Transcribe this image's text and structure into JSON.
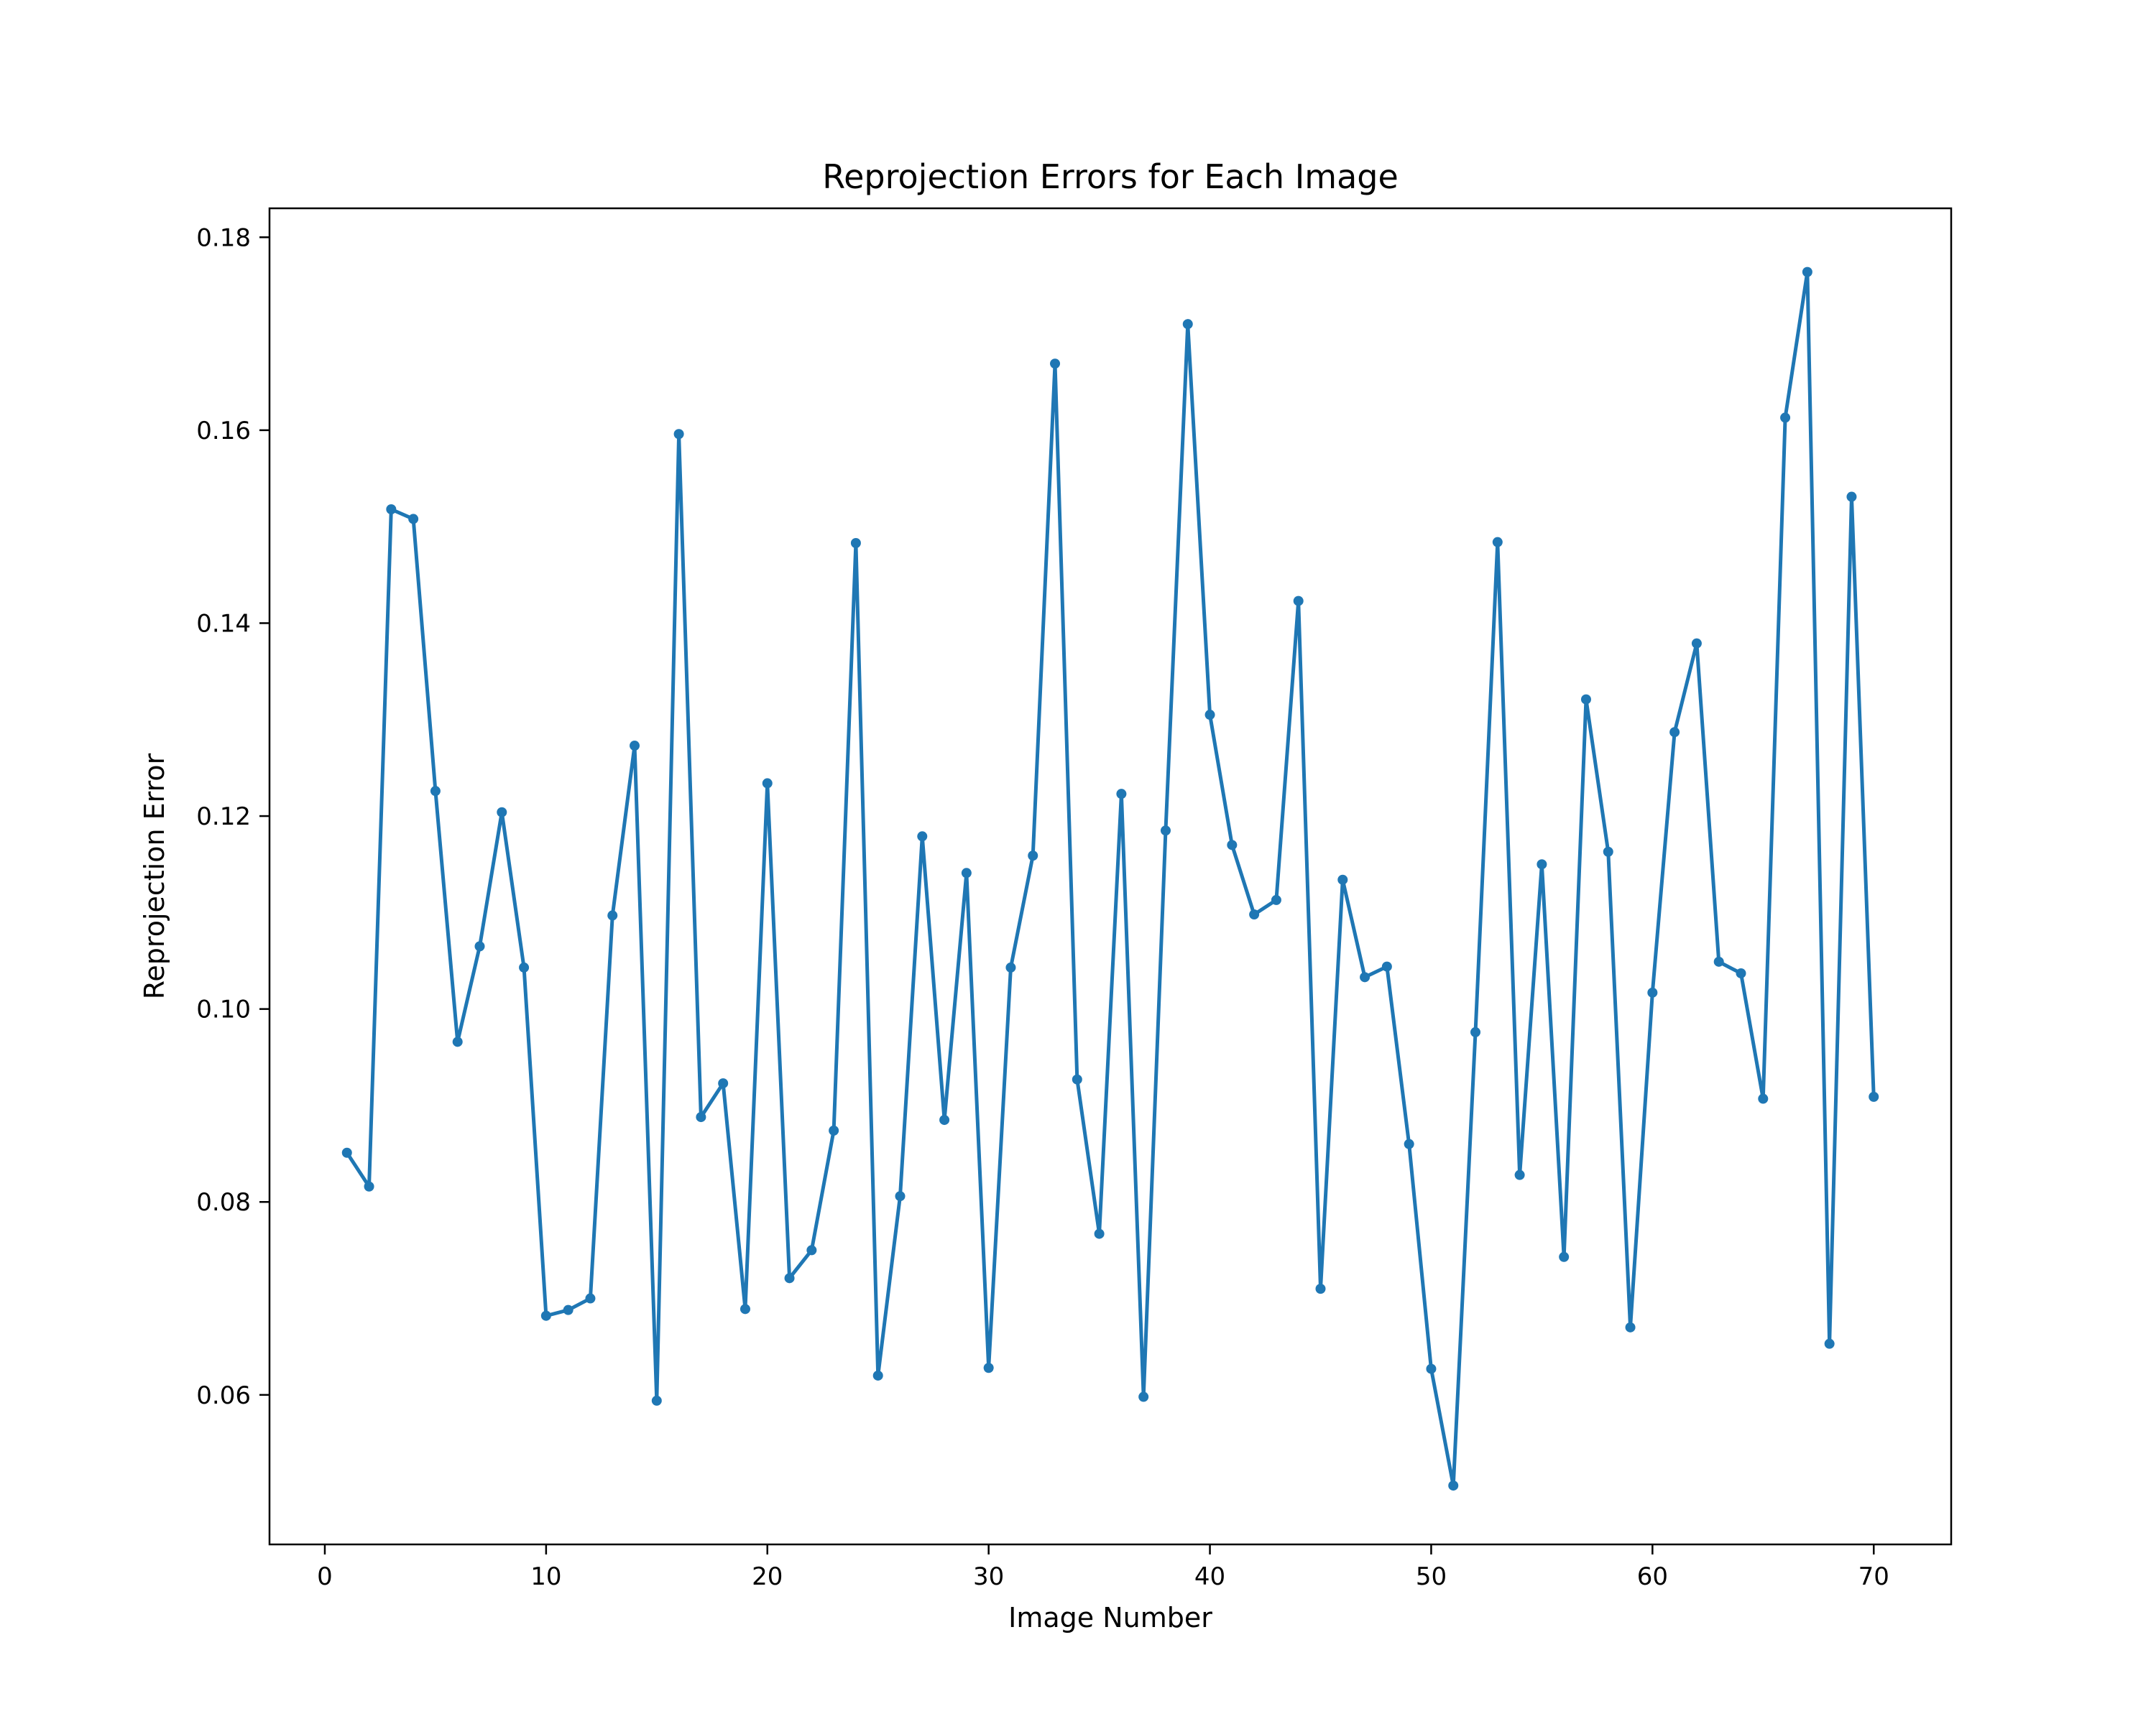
{
  "chart_data": {
    "type": "line",
    "title": "Reprojection Errors for Each Image",
    "xlabel": "Image Number",
    "ylabel": "Reprojection Error",
    "xlim": [
      -2.5,
      73.5
    ],
    "ylim": [
      0.0445,
      0.183
    ],
    "xticks": [
      0,
      10,
      20,
      30,
      40,
      50,
      60,
      70
    ],
    "xtick_labels": [
      "0",
      "10",
      "20",
      "30",
      "40",
      "50",
      "60",
      "70"
    ],
    "yticks": [
      0.06,
      0.08,
      0.1,
      0.12,
      0.14,
      0.16,
      0.18
    ],
    "ytick_labels": [
      "0.06",
      "0.08",
      "0.10",
      "0.12",
      "0.14",
      "0.16",
      "0.18"
    ],
    "grid": false,
    "legend": "none",
    "marker": "circle",
    "series": [
      {
        "color": "#1f77b4",
        "x": [
          1,
          2,
          3,
          4,
          5,
          6,
          7,
          8,
          9,
          10,
          11,
          12,
          13,
          14,
          15,
          16,
          17,
          18,
          19,
          20,
          21,
          22,
          23,
          24,
          25,
          26,
          27,
          28,
          29,
          30,
          31,
          32,
          33,
          34,
          35,
          36,
          37,
          38,
          39,
          40,
          41,
          42,
          43,
          44,
          45,
          46,
          47,
          48,
          49,
          50,
          51,
          52,
          53,
          54,
          55,
          56,
          57,
          58,
          59,
          60,
          61,
          62,
          63,
          64,
          65,
          66,
          67,
          68,
          69,
          70
        ],
        "y": [
          0.0851,
          0.0816,
          0.1518,
          0.1508,
          0.1226,
          0.0966,
          0.1065,
          0.1204,
          0.1043,
          0.0682,
          0.0688,
          0.07,
          0.1097,
          0.1273,
          0.0594,
          0.1596,
          0.0888,
          0.0923,
          0.0689,
          0.1234,
          0.0721,
          0.075,
          0.0874,
          0.1483,
          0.062,
          0.0806,
          0.1179,
          0.0885,
          0.1141,
          0.0628,
          0.1043,
          0.1159,
          0.1669,
          0.0927,
          0.0767,
          0.1223,
          0.0598,
          0.1185,
          0.171,
          0.1305,
          0.117,
          0.1098,
          0.1113,
          0.1423,
          0.071,
          0.1134,
          0.1033,
          0.1044,
          0.086,
          0.0627,
          0.0506,
          0.0976,
          0.1484,
          0.0828,
          0.115,
          0.0743,
          0.1321,
          0.1163,
          0.067,
          0.1017,
          0.1287,
          0.1379,
          0.1049,
          0.1037,
          0.0907,
          0.1613,
          0.1764,
          0.0653,
          0.1531,
          0.0909
        ]
      }
    ]
  }
}
